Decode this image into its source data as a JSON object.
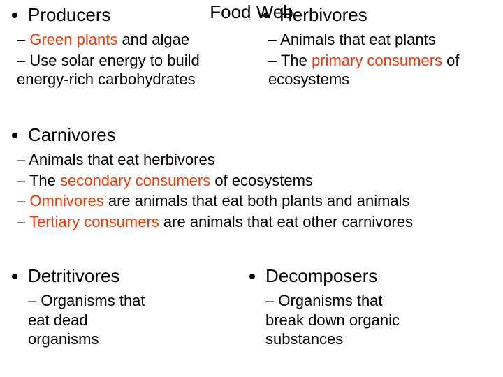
{
  "title": "Food Web",
  "colors": {
    "accent": "#ff3300",
    "text": "#000000",
    "bg": "#ffffff"
  },
  "producers": {
    "heading": "Producers",
    "items": [
      {
        "pre": "",
        "hl": "Green plants",
        "post": " and algae"
      },
      {
        "pre": "Use solar energy to build energy-rich carbohydrates",
        "hl": "",
        "post": ""
      }
    ]
  },
  "herbivores": {
    "heading": "Herbivores",
    "items": [
      {
        "pre": "Animals that eat plants",
        "hl": "",
        "post": ""
      },
      {
        "pre": "The ",
        "hl": "primary consumers",
        "post": " of ecosystems"
      }
    ]
  },
  "carnivores": {
    "heading": "Carnivores",
    "items": [
      {
        "pre": "Animals that eat herbivores",
        "hl": "",
        "post": ""
      },
      {
        "pre": "The ",
        "hl": "secondary consumers",
        "post": " of ecosystems"
      },
      {
        "pre": "",
        "hl": "Omnivores",
        "post": " are animals that eat both plants and animals"
      },
      {
        "pre": "",
        "hl": "Tertiary consumers",
        "post": " are animals that eat other carnivores"
      }
    ]
  },
  "detritivores": {
    "heading": "Detritivores",
    "items": [
      {
        "pre": "Organisms that eat dead organisms",
        "hl": "",
        "post": ""
      }
    ]
  },
  "decomposers": {
    "heading": "Decomposers",
    "items": [
      {
        "pre": "Organisms that break down organic substances",
        "hl": "",
        "post": ""
      }
    ]
  }
}
